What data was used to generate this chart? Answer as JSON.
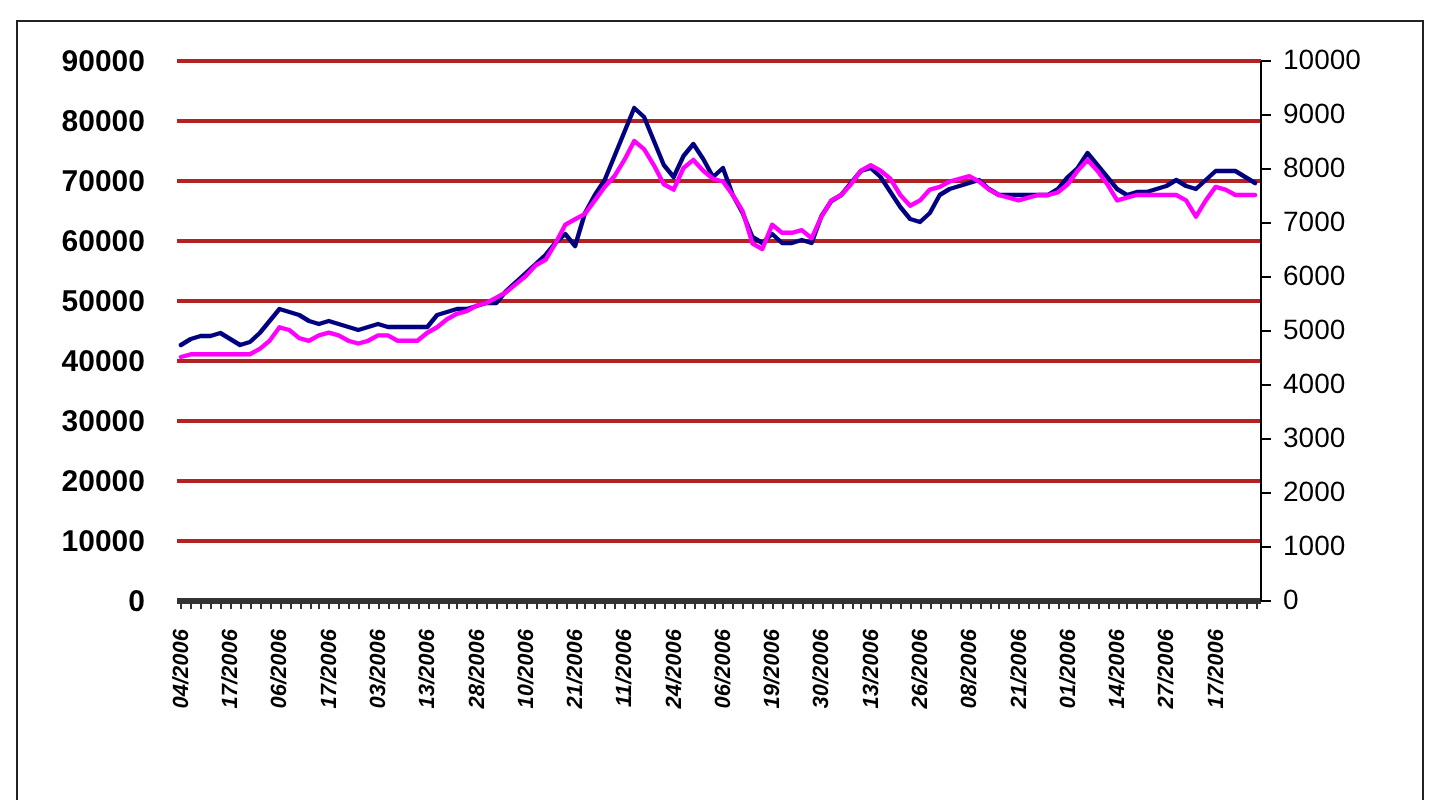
{
  "chart_data": {
    "type": "line",
    "categories": [
      "04/2006",
      null,
      null,
      null,
      null,
      "17/2006",
      null,
      null,
      null,
      null,
      "06/2006",
      null,
      null,
      null,
      null,
      "17/2006",
      null,
      null,
      null,
      null,
      "03/2006",
      null,
      null,
      null,
      null,
      "13/2006",
      null,
      null,
      null,
      null,
      "28/2006",
      null,
      null,
      null,
      null,
      "10/2006",
      null,
      null,
      null,
      null,
      "21/2006",
      null,
      null,
      null,
      null,
      "11/2006",
      null,
      null,
      null,
      null,
      "24/2006",
      null,
      null,
      null,
      null,
      "06/2006",
      null,
      null,
      null,
      null,
      "19/2006",
      null,
      null,
      null,
      null,
      "30/2006",
      null,
      null,
      null,
      null,
      "13/2006",
      null,
      null,
      null,
      null,
      "26/2006",
      null,
      null,
      null,
      null,
      "08/2006",
      null,
      null,
      null,
      null,
      "21/2006",
      null,
      null,
      null,
      null,
      "01/2006",
      null,
      null,
      null,
      null,
      "14/2006",
      null,
      null,
      null,
      null,
      "27/2006",
      null,
      null,
      null,
      null,
      "17/2006",
      null,
      null,
      null,
      null
    ],
    "series": [
      {
        "color": "#000080",
        "values": [
          42500,
          43500,
          44000,
          44000,
          44500,
          43500,
          42500,
          43000,
          44500,
          46500,
          48500,
          48000,
          47500,
          46500,
          46000,
          46500,
          46000,
          45500,
          45000,
          45500,
          46000,
          45500,
          45500,
          45500,
          45500,
          45500,
          47500,
          48000,
          48500,
          48500,
          49000,
          49500,
          49500,
          51500,
          53000,
          54500,
          56000,
          57500,
          59500,
          61000,
          59000,
          64500,
          67500,
          70000,
          74000,
          78000,
          82000,
          80500,
          76500,
          72500,
          70500,
          74000,
          76000,
          73500,
          70500,
          72000,
          67500,
          64500,
          60500,
          59500,
          61000,
          59500,
          59500,
          60000,
          59500,
          64000,
          66500,
          67500,
          69500,
          71500,
          72000,
          70500,
          68000,
          65500,
          63500,
          63000,
          64500,
          67500,
          68500,
          69000,
          69500,
          70000,
          68500,
          67500,
          67500,
          67500,
          67500,
          67500,
          67500,
          68500,
          70500,
          72000,
          74500,
          72500,
          70500,
          68500,
          67500,
          68000,
          68000,
          68500,
          69000,
          70000,
          69000,
          68500,
          70000,
          71500,
          71500,
          71500,
          70500,
          69500
        ]
      },
      {
        "color": "#ff00ff",
        "axis": "y2",
        "values": [
          4500,
          4550,
          4550,
          4550,
          4550,
          4550,
          4550,
          4550,
          4650,
          4800,
          5050,
          5000,
          4850,
          4800,
          4900,
          4950,
          4900,
          4800,
          4750,
          4800,
          4900,
          4900,
          4800,
          4800,
          4800,
          4950,
          5050,
          5200,
          5300,
          5350,
          5450,
          5500,
          5600,
          5700,
          5850,
          6000,
          6200,
          6300,
          6600,
          6950,
          7050,
          7150,
          7400,
          7650,
          7850,
          8150,
          8500,
          8350,
          8050,
          7700,
          7600,
          8000,
          8150,
          7950,
          7800,
          7750,
          7500,
          7200,
          6600,
          6500,
          6950,
          6800,
          6800,
          6850,
          6700,
          7100,
          7400,
          7500,
          7700,
          7950,
          8050,
          7950,
          7800,
          7500,
          7300,
          7400,
          7600,
          7650,
          7750,
          7800,
          7850,
          7750,
          7600,
          7500,
          7450,
          7400,
          7450,
          7500,
          7500,
          7550,
          7700,
          7950,
          8150,
          7950,
          7700,
          7400,
          7450,
          7500,
          7500,
          7500,
          7500,
          7500,
          7400,
          7100,
          7400,
          7650,
          7600,
          7500,
          7500,
          7500
        ]
      }
    ],
    "ylim": [
      0,
      90000
    ],
    "yticks": [
      0,
      10000,
      20000,
      30000,
      40000,
      50000,
      60000,
      70000,
      80000,
      90000
    ],
    "y2lim": [
      0,
      10000
    ],
    "y2ticks": [
      0,
      1000,
      2000,
      3000,
      4000,
      5000,
      6000,
      7000,
      8000,
      9000,
      10000
    ],
    "grid": "y"
  }
}
